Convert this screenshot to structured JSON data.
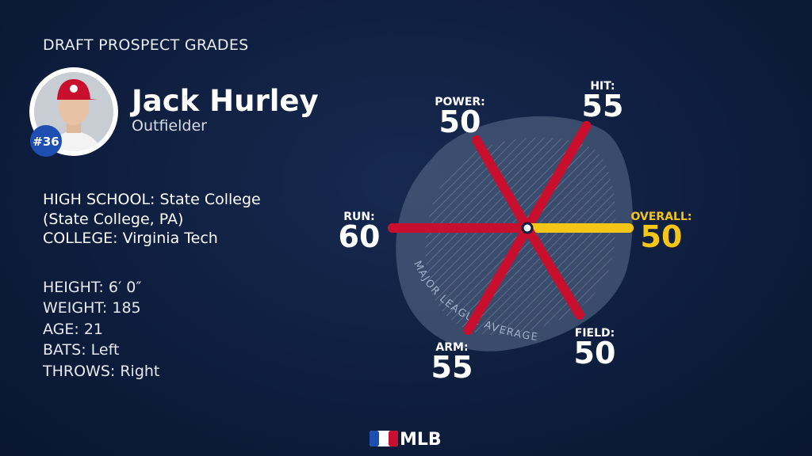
{
  "header": {
    "title": "DRAFT PROSPECT GRADES"
  },
  "player": {
    "name": "Jack Hurley",
    "position": "Outfielder",
    "number": "#36"
  },
  "schools": [
    "HIGH SCHOOL: State College (State College, PA)",
    "COLLEGE: Virginia Tech"
  ],
  "stats": [
    "HEIGHT: 6′ 0″",
    "WEIGHT: 185",
    "AGE: 21",
    "BATS: Left",
    "THROWS: Right"
  ],
  "grades": [
    {
      "label": "RUN:",
      "value": 60,
      "color": "#c8102e"
    },
    {
      "label": "POWER:",
      "value": 50,
      "color": "#c8102e"
    },
    {
      "label": "HIT:",
      "value": 55,
      "color": "#c8102e"
    },
    {
      "label": "OVERALL:",
      "value": 50,
      "color": "#f5c518"
    },
    {
      "label": "FIELD:",
      "value": 50,
      "color": "#c8102e"
    },
    {
      "label": "ARM:",
      "value": 55,
      "color": "#c8102e"
    }
  ],
  "annotation": "MAJOR LEAGUE AVERAGE",
  "footer": {
    "logo": "MLB"
  }
}
